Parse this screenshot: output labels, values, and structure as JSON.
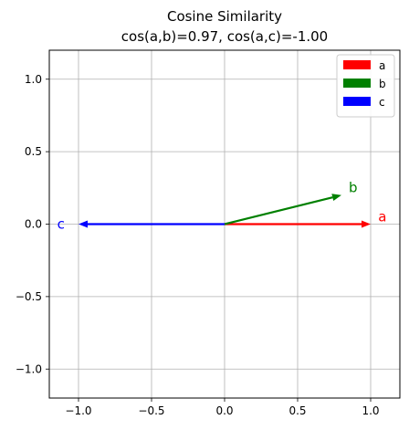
{
  "chart_data": {
    "type": "line",
    "title": "Cosine Similarity",
    "subtitle": "cos(a,b)=0.97, cos(a,c)=-1.00",
    "xlim": [
      -1.2,
      1.2
    ],
    "ylim": [
      -1.2,
      1.2
    ],
    "x_ticks": [
      "−1.0",
      "−0.5",
      "0.0",
      "0.5",
      "1.0"
    ],
    "x_tick_values": [
      -1.0,
      -0.5,
      0.0,
      0.5,
      1.0
    ],
    "y_ticks": [
      "1.0",
      "0.5",
      "0.0",
      "−0.5",
      "−1.0"
    ],
    "y_tick_values": [
      1.0,
      0.5,
      0.0,
      -0.5,
      -1.0
    ],
    "grid": true,
    "legend_position": "top-right",
    "series": [
      {
        "name": "a",
        "label": "a",
        "color": "#ff0000",
        "x0": 0,
        "y0": 0,
        "x": 1.0,
        "y": 0.0,
        "label_x": 1.08,
        "label_y": 0.02
      },
      {
        "name": "b",
        "label": "b",
        "color": "#008000",
        "x0": 0,
        "y0": 0,
        "x": 0.8,
        "y": 0.2,
        "label_x": 0.88,
        "label_y": 0.22
      },
      {
        "name": "c",
        "label": "c",
        "color": "#0000ff",
        "x0": 0,
        "y0": 0,
        "x": -1.0,
        "y": 0.0,
        "label_x": -1.12,
        "label_y": -0.03
      }
    ]
  }
}
